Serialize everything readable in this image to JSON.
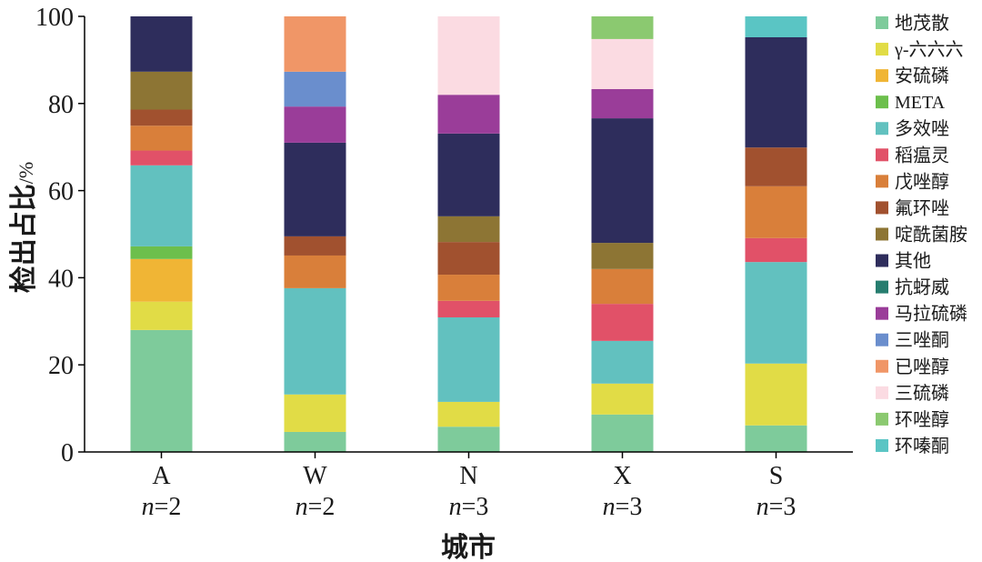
{
  "chart_data": {
    "type": "bar",
    "stacked": true,
    "xlabel": "城市",
    "ylabel": "检出占比/%",
    "ylim": [
      0,
      100
    ],
    "yticks": [
      0,
      20,
      40,
      60,
      80,
      100
    ],
    "categories": [
      "A",
      "W",
      "N",
      "X",
      "S"
    ],
    "sample_labels": [
      "n=2",
      "n=2",
      "n=3",
      "n=3",
      "n=3"
    ],
    "legend_position": "right",
    "grid": false,
    "series": [
      {
        "name": "地茂散",
        "color": "#7ecb9b",
        "values": [
          28.0,
          4.6,
          5.8,
          8.6,
          6.1
        ]
      },
      {
        "name": "γ-六六六",
        "color": "#e1dc46",
        "values": [
          6.5,
          8.6,
          5.7,
          7.1,
          14.2
        ]
      },
      {
        "name": "安硫磷",
        "color": "#f0b535",
        "values": [
          9.8,
          0,
          0,
          0,
          0
        ]
      },
      {
        "name": "META",
        "color": "#6cbf4c",
        "values": [
          2.9,
          0,
          0,
          0,
          0
        ]
      },
      {
        "name": "多效唑",
        "color": "#62c1bf",
        "values": [
          18.6,
          24.4,
          19.4,
          9.8,
          23.3
        ]
      },
      {
        "name": "稻瘟灵",
        "color": "#e15168",
        "values": [
          3.4,
          0,
          3.8,
          8.5,
          5.5
        ]
      },
      {
        "name": "戊唑醇",
        "color": "#d97f3a",
        "values": [
          5.7,
          7.5,
          6.0,
          8.0,
          11.9
        ]
      },
      {
        "name": "氟环唑",
        "color": "#a1512f",
        "values": [
          3.7,
          4.4,
          7.5,
          0,
          8.9
        ]
      },
      {
        "name": "啶酰菌胺",
        "color": "#8d7534",
        "values": [
          8.7,
          0,
          5.9,
          6.0,
          0
        ]
      },
      {
        "name": "其他",
        "color": "#2e2d5c",
        "values": [
          12.7,
          21.5,
          19.0,
          28.6,
          25.3
        ]
      },
      {
        "name": "抗蚜威",
        "color": "#267d6f",
        "values": [
          0,
          0,
          0,
          0,
          0
        ]
      },
      {
        "name": "马拉硫磷",
        "color": "#9a3d99",
        "values": [
          0,
          8.3,
          8.9,
          6.7,
          0
        ]
      },
      {
        "name": "三唑酮",
        "color": "#6a8ecd",
        "values": [
          0,
          8.0,
          0,
          0,
          0
        ]
      },
      {
        "name": "已唑醇",
        "color": "#f09667",
        "values": [
          0,
          12.7,
          0,
          0,
          0
        ]
      },
      {
        "name": "三硫磷",
        "color": "#fbdbe2",
        "values": [
          0,
          0,
          18.0,
          11.5,
          0
        ]
      },
      {
        "name": "环唑醇",
        "color": "#8bc970",
        "values": [
          0,
          0,
          0,
          5.2,
          0
        ]
      },
      {
        "name": "环嗪酮",
        "color": "#5ac5c4",
        "values": [
          0,
          0,
          0,
          0,
          4.8
        ]
      }
    ]
  }
}
